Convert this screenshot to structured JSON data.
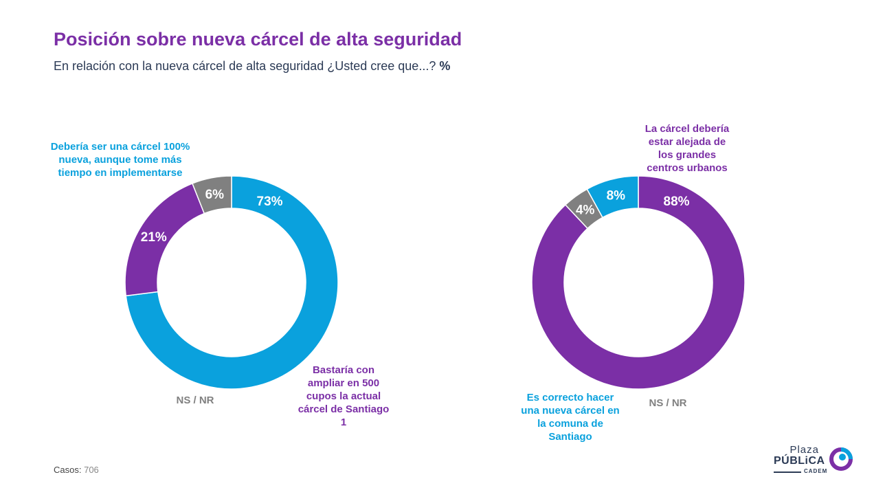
{
  "header": {
    "title": "Posición sobre nueva cárcel de alta seguridad",
    "subtitle": "En relación con la nueva cárcel de alta seguridad ¿Usted cree que...?",
    "subtitle_unit": "%"
  },
  "chart_data": [
    {
      "type": "pie",
      "donut": true,
      "slices": [
        {
          "label": "Debería ser una cárcel 100% nueva, aunque tome más tiempo en implementarse",
          "value": 73,
          "value_label": "73%",
          "color": "#0aa1dd"
        },
        {
          "label": "Bastaría con ampliar en 500 cupos la actual cárcel de Santiago 1",
          "value": 21,
          "value_label": "21%",
          "color": "#7b2fa6"
        },
        {
          "label": "NS / NR",
          "value": 6,
          "value_label": "6%",
          "color": "#808080"
        }
      ]
    },
    {
      "type": "pie",
      "donut": true,
      "slices": [
        {
          "label": "La cárcel debería estar alejada de los grandes centros urbanos",
          "value": 88,
          "value_label": "88%",
          "color": "#7b2fa6"
        },
        {
          "label": "NS / NR",
          "value": 4,
          "value_label": "4%",
          "color": "#808080"
        },
        {
          "label": "Es correcto hacer una nueva cárcel en la comuna de Santiago",
          "value": 8,
          "value_label": "8%",
          "color": "#0aa1dd"
        }
      ]
    }
  ],
  "footer": {
    "cases_label": "Casos",
    "cases_value": "706"
  },
  "logo": {
    "line1": "Plaza",
    "line2": "PÚBLiCA",
    "line3": "CADEM",
    "colors": [
      "#0aa1dd",
      "#7b2fa6"
    ]
  }
}
